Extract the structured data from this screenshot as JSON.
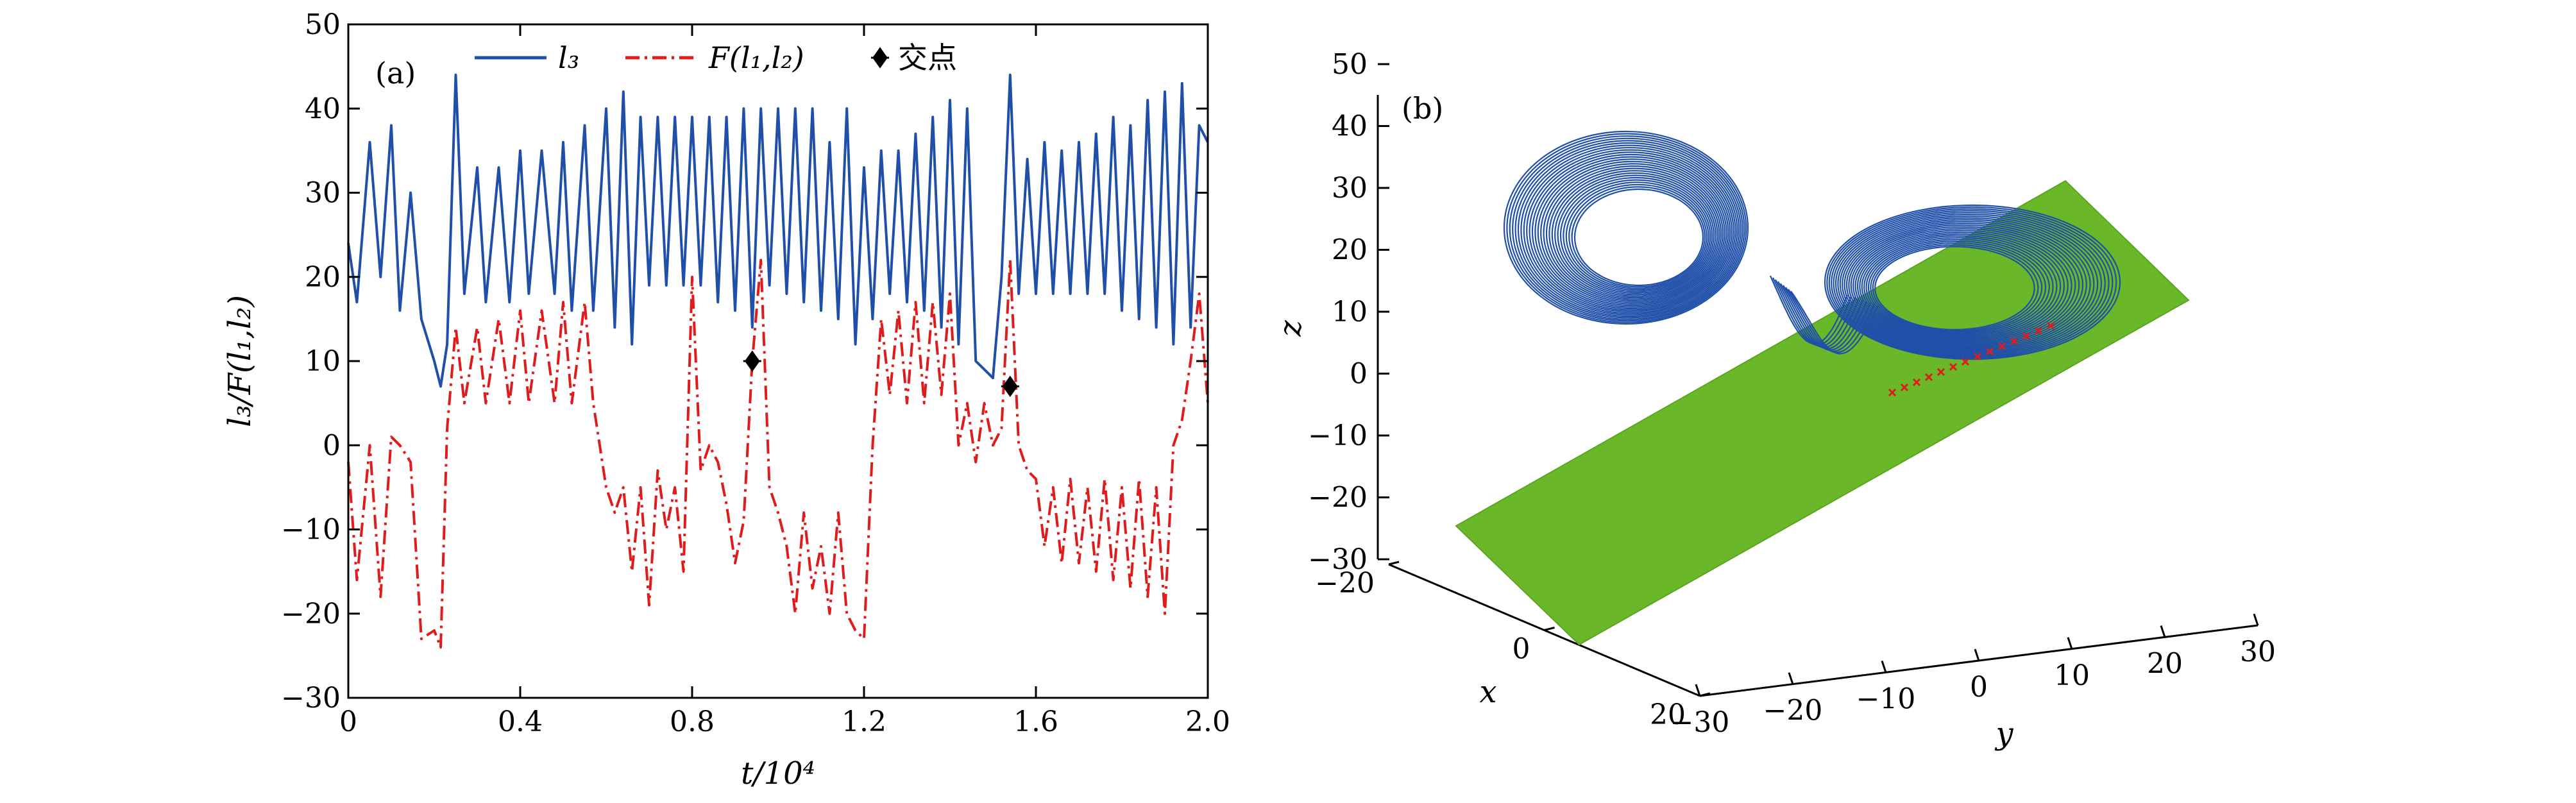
{
  "chart_data": [
    {
      "type": "line",
      "panel_label": "(a)",
      "xlabel": "t/10⁴",
      "ylabel": "l₃/F(l₁,l₂)",
      "xlim": [
        0,
        2.0
      ],
      "ylim": [
        -30,
        50
      ],
      "x_ticks": [
        "0",
        "0.4",
        "0.8",
        "1.2",
        "1.6",
        "2.0"
      ],
      "y_ticks": [
        "−30",
        "−20",
        "−10",
        "0",
        "10",
        "20",
        "30",
        "40",
        "50"
      ],
      "grid": false,
      "legend_position": "top",
      "series": [
        {
          "name": "l₃",
          "color": "#1f4fa8",
          "style": "solid",
          "x": [
            0.0,
            0.02,
            0.05,
            0.075,
            0.1,
            0.12,
            0.145,
            0.17,
            0.2,
            0.215,
            0.23,
            0.25,
            0.27,
            0.3,
            0.32,
            0.35,
            0.375,
            0.4,
            0.42,
            0.45,
            0.48,
            0.5,
            0.52,
            0.55,
            0.57,
            0.6,
            0.62,
            0.64,
            0.66,
            0.68,
            0.7,
            0.72,
            0.74,
            0.76,
            0.78,
            0.8,
            0.82,
            0.84,
            0.86,
            0.88,
            0.9,
            0.92,
            0.94,
            0.96,
            0.98,
            1.0,
            1.02,
            1.04,
            1.06,
            1.08,
            1.1,
            1.12,
            1.14,
            1.16,
            1.18,
            1.2,
            1.22,
            1.24,
            1.26,
            1.28,
            1.3,
            1.32,
            1.34,
            1.36,
            1.38,
            1.4,
            1.42,
            1.44,
            1.46,
            1.48,
            1.5,
            1.52,
            1.54,
            1.56,
            1.58,
            1.6,
            1.62,
            1.64,
            1.66,
            1.68,
            1.7,
            1.72,
            1.74,
            1.76,
            1.78,
            1.8,
            1.82,
            1.84,
            1.86,
            1.88,
            1.9,
            1.92,
            1.94,
            1.96,
            1.98,
            2.0
          ],
          "y": [
            24,
            17,
            36,
            20,
            38,
            16,
            30,
            15,
            10,
            7,
            12,
            44,
            18,
            33,
            17,
            33,
            17,
            35,
            18,
            35,
            18,
            36,
            16,
            38,
            16,
            40,
            14,
            42,
            12,
            39,
            19,
            39,
            19,
            39,
            19,
            39,
            19,
            39,
            17,
            39,
            16,
            40,
            14,
            40,
            19,
            40,
            18,
            40,
            17,
            40,
            16,
            36,
            15,
            40,
            12,
            33,
            15,
            35,
            18,
            35,
            17,
            37,
            16,
            39,
            14,
            41,
            12,
            40,
            10,
            9,
            8,
            20,
            44,
            18,
            34,
            18,
            36,
            18,
            35,
            18,
            36,
            18,
            37,
            18,
            39,
            16,
            38,
            15,
            41,
            14,
            42,
            12,
            43,
            14,
            38,
            36
          ]
        },
        {
          "name": "F(l₁,l₂)",
          "color": "#e01b1b",
          "style": "dashdot",
          "x": [
            0.0,
            0.02,
            0.05,
            0.075,
            0.1,
            0.12,
            0.145,
            0.17,
            0.2,
            0.215,
            0.23,
            0.25,
            0.27,
            0.3,
            0.32,
            0.35,
            0.375,
            0.4,
            0.42,
            0.45,
            0.48,
            0.5,
            0.52,
            0.55,
            0.57,
            0.6,
            0.62,
            0.64,
            0.66,
            0.68,
            0.7,
            0.72,
            0.74,
            0.76,
            0.78,
            0.8,
            0.82,
            0.84,
            0.86,
            0.88,
            0.9,
            0.92,
            0.94,
            0.96,
            0.98,
            1.0,
            1.02,
            1.04,
            1.06,
            1.08,
            1.1,
            1.12,
            1.14,
            1.16,
            1.18,
            1.2,
            1.22,
            1.24,
            1.26,
            1.28,
            1.3,
            1.32,
            1.34,
            1.36,
            1.38,
            1.4,
            1.42,
            1.44,
            1.46,
            1.48,
            1.5,
            1.52,
            1.54,
            1.56,
            1.58,
            1.6,
            1.62,
            1.64,
            1.66,
            1.68,
            1.7,
            1.72,
            1.74,
            1.76,
            1.78,
            1.8,
            1.82,
            1.84,
            1.86,
            1.88,
            1.9,
            1.92,
            1.94,
            1.96,
            1.98,
            2.0
          ],
          "y": [
            -2,
            -16,
            0,
            -18,
            1,
            0,
            -2,
            -23,
            -22,
            -24,
            2,
            14,
            5,
            14,
            5,
            15,
            5,
            16,
            5,
            16,
            5,
            17,
            5,
            17,
            5,
            -5,
            -8,
            -5,
            -15,
            -5,
            -19,
            -3,
            -10,
            -5,
            -15,
            20,
            -3,
            0,
            -2,
            -7,
            -14,
            -9,
            10,
            22,
            -5,
            -8,
            -12,
            -20,
            -8,
            -17,
            -12,
            -20,
            -8,
            -20,
            -22,
            -23,
            0,
            15,
            6,
            16,
            5,
            17,
            5,
            17,
            6,
            18,
            0,
            5,
            -2,
            5,
            0,
            2,
            22,
            0,
            -3,
            -4,
            -12,
            -5,
            -14,
            -4,
            -14,
            -5,
            -15,
            -4,
            -16,
            -5,
            -17,
            -4,
            -18,
            -5,
            -20,
            0,
            3,
            10,
            18,
            5
          ]
        },
        {
          "name": "交点",
          "color": "#000000",
          "style": "marker",
          "x": [
            0.94,
            1.54
          ],
          "y": [
            10,
            7
          ]
        }
      ]
    },
    {
      "type": "3d-line",
      "panel_label": "(b)",
      "xlabel": "x",
      "ylabel": "y",
      "zlabel": "z",
      "xlim": [
        -20,
        20
      ],
      "ylim": [
        -30,
        30
      ],
      "zlim": [
        -30,
        50
      ],
      "x_ticks": [
        "−20",
        "0",
        "20"
      ],
      "y_ticks": [
        "−30",
        "−20",
        "−10",
        "0",
        "10",
        "20",
        "30"
      ],
      "z_ticks": [
        "−30",
        "−20",
        "−10",
        "0",
        "10",
        "20",
        "30",
        "40",
        "50"
      ],
      "series": [
        {
          "name": "trajectory",
          "color": "#1f4fa8"
        },
        {
          "name": "plane",
          "color": "#6ab82a"
        },
        {
          "name": "intersections",
          "color": "#e01b1b"
        }
      ]
    }
  ]
}
